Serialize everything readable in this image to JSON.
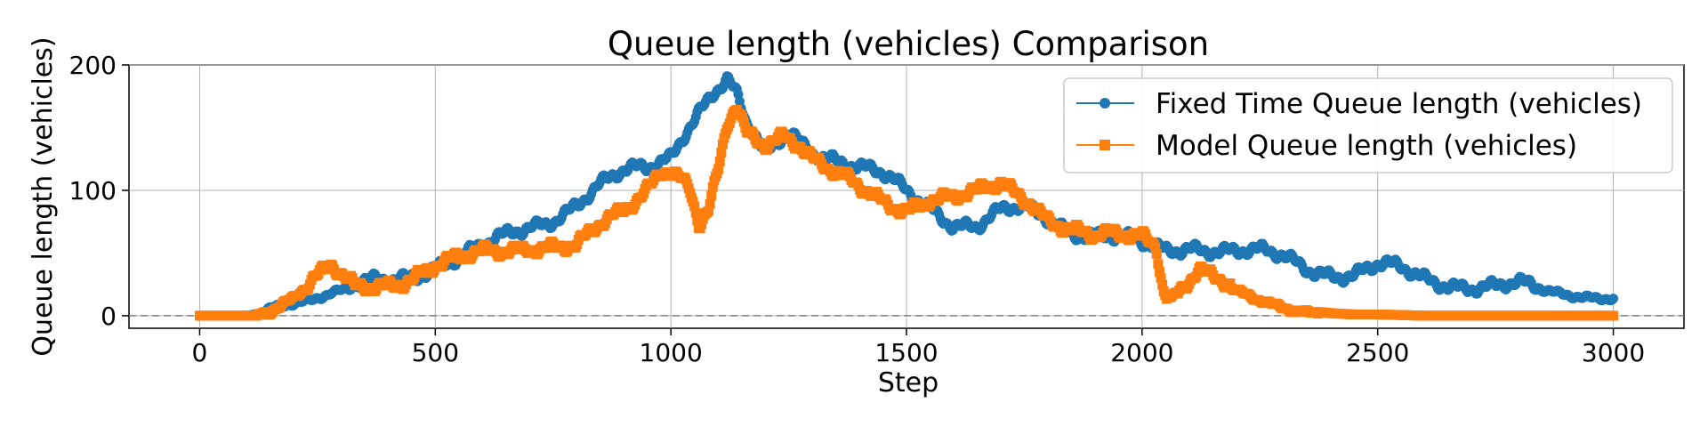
{
  "chart_data": {
    "type": "line",
    "title": "Queue length (vehicles) Comparison",
    "xlabel": "Step",
    "ylabel": "Queue length (vehicles)",
    "xlim": [
      -150,
      3150
    ],
    "ylim": [
      -10,
      200
    ],
    "xticks": [
      "0",
      "500",
      "1000",
      "1500",
      "2000",
      "2500",
      "3000"
    ],
    "yticks": [
      "0",
      "100",
      "200"
    ],
    "grid": true,
    "legend_position": "top-right",
    "reference_line": {
      "y": 0,
      "style": "dashed",
      "color": "#808080"
    },
    "series": [
      {
        "name": "Fixed Time Queue length (vehicles)",
        "color": "#1f77b4",
        "marker": "circle",
        "points": [
          [
            0,
            0
          ],
          [
            100,
            0
          ],
          [
            130,
            2
          ],
          [
            160,
            8
          ],
          [
            200,
            12
          ],
          [
            240,
            14
          ],
          [
            280,
            18
          ],
          [
            320,
            20
          ],
          [
            360,
            24
          ],
          [
            400,
            28
          ],
          [
            450,
            34
          ],
          [
            500,
            42
          ],
          [
            550,
            46
          ],
          [
            600,
            52
          ],
          [
            650,
            62
          ],
          [
            700,
            72
          ],
          [
            750,
            80
          ],
          [
            800,
            90
          ],
          [
            850,
            102
          ],
          [
            900,
            112
          ],
          [
            950,
            118
          ],
          [
            1000,
            130
          ],
          [
            1030,
            150
          ],
          [
            1060,
            165
          ],
          [
            1090,
            178
          ],
          [
            1120,
            186
          ],
          [
            1140,
            172
          ],
          [
            1160,
            150
          ],
          [
            1180,
            140
          ],
          [
            1200,
            125
          ],
          [
            1220,
            135
          ],
          [
            1250,
            150
          ],
          [
            1280,
            140
          ],
          [
            1300,
            135
          ],
          [
            1350,
            125
          ],
          [
            1400,
            115
          ],
          [
            1450,
            110
          ],
          [
            1500,
            100
          ],
          [
            1550,
            90
          ],
          [
            1600,
            75
          ],
          [
            1650,
            70
          ],
          [
            1700,
            80
          ],
          [
            1750,
            85
          ],
          [
            1800,
            80
          ],
          [
            1850,
            70
          ],
          [
            1900,
            65
          ],
          [
            1950,
            60
          ],
          [
            2000,
            55
          ],
          [
            2050,
            52
          ],
          [
            2100,
            58
          ],
          [
            2150,
            55
          ],
          [
            2200,
            50
          ],
          [
            2250,
            48
          ],
          [
            2300,
            46
          ],
          [
            2350,
            40
          ],
          [
            2400,
            36
          ],
          [
            2450,
            33
          ],
          [
            2500,
            38
          ],
          [
            2550,
            35
          ],
          [
            2600,
            30
          ],
          [
            2650,
            28
          ],
          [
            2700,
            25
          ],
          [
            2750,
            22
          ],
          [
            2800,
            22
          ],
          [
            2850,
            20
          ],
          [
            2900,
            18
          ],
          [
            2950,
            16
          ],
          [
            3000,
            14
          ]
        ]
      },
      {
        "name": "Model Queue length (vehicles)",
        "color": "#ff7f0e",
        "marker": "square",
        "points": [
          [
            0,
            0
          ],
          [
            120,
            0
          ],
          [
            150,
            5
          ],
          [
            200,
            15
          ],
          [
            250,
            28
          ],
          [
            280,
            36
          ],
          [
            300,
            30
          ],
          [
            330,
            22
          ],
          [
            360,
            25
          ],
          [
            400,
            28
          ],
          [
            450,
            32
          ],
          [
            500,
            38
          ],
          [
            550,
            42
          ],
          [
            600,
            50
          ],
          [
            650,
            55
          ],
          [
            700,
            58
          ],
          [
            750,
            55
          ],
          [
            800,
            52
          ],
          [
            850,
            70
          ],
          [
            900,
            85
          ],
          [
            950,
            105
          ],
          [
            980,
            120
          ],
          [
            1000,
            118
          ],
          [
            1020,
            110
          ],
          [
            1040,
            100
          ],
          [
            1060,
            70
          ],
          [
            1080,
            80
          ],
          [
            1100,
            110
          ],
          [
            1120,
            150
          ],
          [
            1140,
            165
          ],
          [
            1160,
            145
          ],
          [
            1200,
            140
          ],
          [
            1240,
            148
          ],
          [
            1270,
            140
          ],
          [
            1300,
            125
          ],
          [
            1350,
            110
          ],
          [
            1400,
            100
          ],
          [
            1450,
            92
          ],
          [
            1500,
            88
          ],
          [
            1550,
            95
          ],
          [
            1600,
            92
          ],
          [
            1650,
            95
          ],
          [
            1700,
            105
          ],
          [
            1730,
            100
          ],
          [
            1760,
            95
          ],
          [
            1800,
            80
          ],
          [
            1850,
            68
          ],
          [
            1900,
            60
          ],
          [
            1950,
            62
          ],
          [
            2000,
            65
          ],
          [
            2030,
            60
          ],
          [
            2045,
            25
          ],
          [
            2060,
            15
          ],
          [
            2100,
            30
          ],
          [
            2120,
            38
          ],
          [
            2150,
            28
          ],
          [
            2200,
            18
          ],
          [
            2250,
            12
          ],
          [
            2300,
            8
          ],
          [
            2350,
            4
          ],
          [
            2400,
            2
          ],
          [
            2450,
            1
          ],
          [
            2500,
            1
          ],
          [
            2600,
            0
          ],
          [
            2700,
            0
          ],
          [
            2800,
            0
          ],
          [
            2900,
            0
          ],
          [
            3000,
            0
          ]
        ]
      }
    ]
  }
}
